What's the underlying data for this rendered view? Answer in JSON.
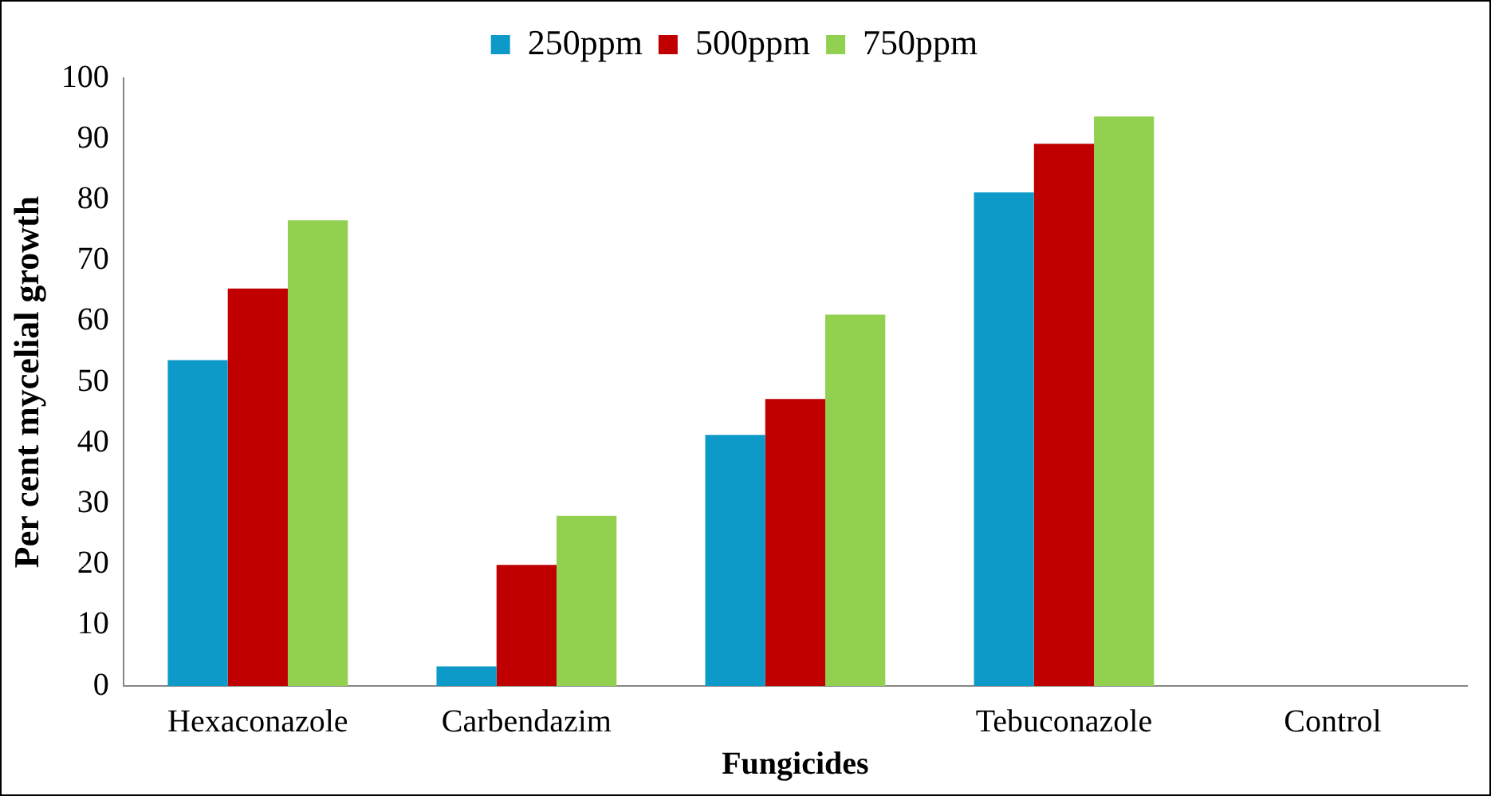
{
  "chart_data": {
    "type": "bar",
    "xlabel": "Fungicides",
    "ylabel": "Per cent mycelial growth",
    "categories": [
      "Hexaconazole",
      "Carbendazim",
      null,
      "Tebuconazole",
      "Control"
    ],
    "series": [
      {
        "name": "250ppm",
        "color": "#0e9ac8",
        "values": [
          53.6,
          3.2,
          41.3,
          81.2,
          0
        ]
      },
      {
        "name": "500ppm",
        "color": "#c00000",
        "values": [
          65.4,
          19.9,
          47.2,
          89.2,
          0
        ]
      },
      {
        "name": "750ppm",
        "color": "#92d050",
        "values": [
          76.6,
          28,
          61.1,
          93.7,
          0
        ]
      }
    ],
    "ylim": [
      0,
      100
    ],
    "yticks": [
      0,
      10,
      20,
      30,
      40,
      50,
      60,
      70,
      80,
      90,
      100
    ],
    "grid": false,
    "legend": "top"
  }
}
